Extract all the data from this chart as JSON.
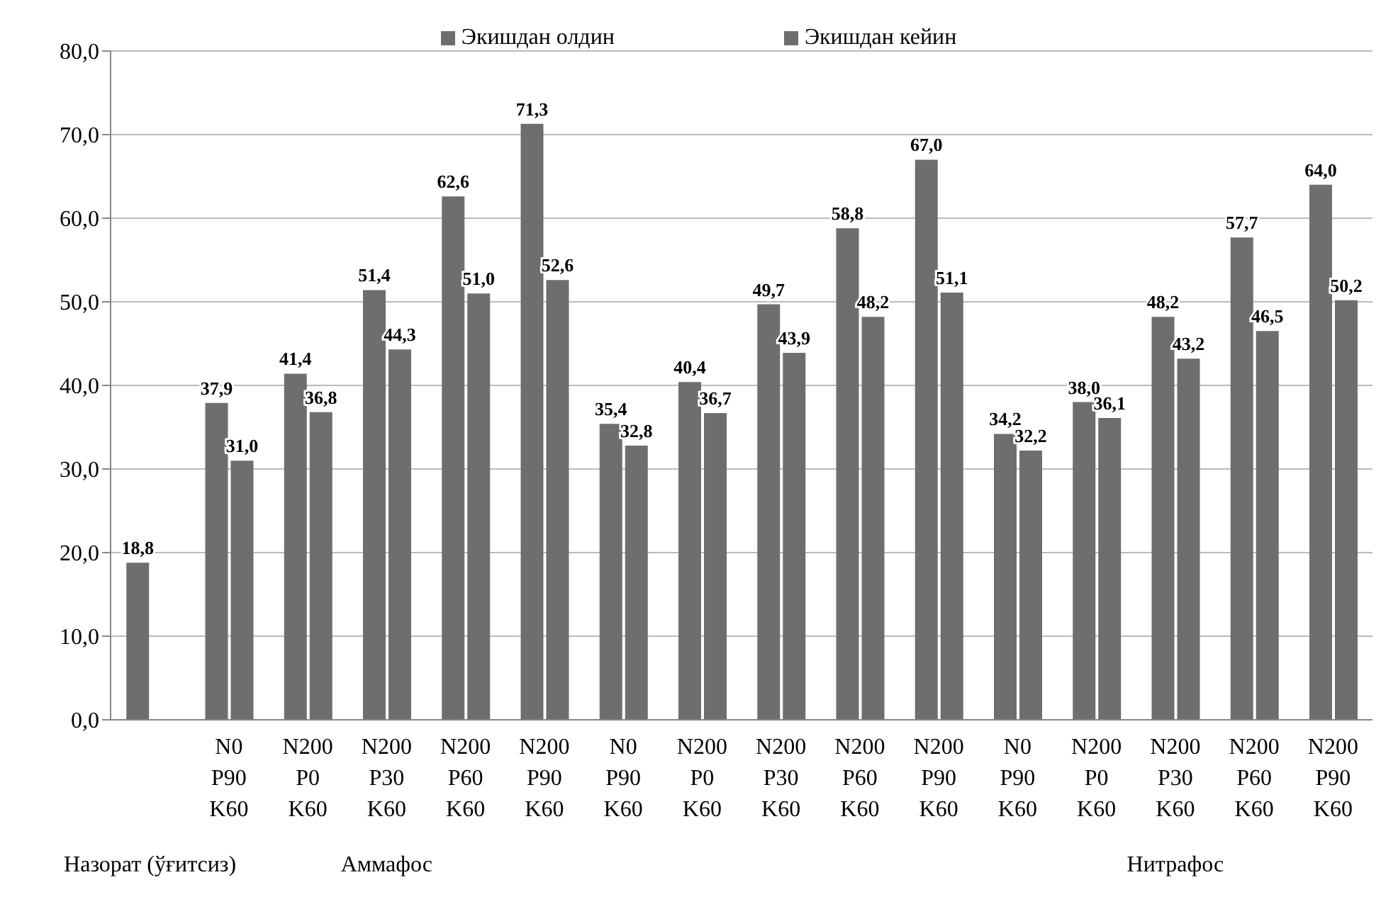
{
  "chart_data": {
    "type": "bar",
    "categories": [
      null,
      "N0\nP90\nK60",
      "N200\nP0\nK60",
      "N200\nP30\nK60",
      "N200\nP60\nK60",
      "N200\nP90\nK60",
      "N0\nP90\nK60",
      "N200\nP0\nK60",
      "N200\nP30\nK60",
      "N200\nP60\nK60",
      "N200\nP90\nK60",
      "N0\nP90\nK60",
      "N200\nP0\nK60",
      "N200\nP30\nK60",
      "N200\nP60\nK60",
      "N200\nP90\nK60"
    ],
    "series": [
      {
        "name": "Экишдан олдин",
        "color": "#6e6e6e",
        "values": [
          18.8,
          37.9,
          41.4,
          51.4,
          62.6,
          71.3,
          35.4,
          40.4,
          49.7,
          58.8,
          67.0,
          34.2,
          38.0,
          48.2,
          57.7,
          64.0
        ],
        "value_labels": [
          "18,8",
          "37,9",
          "41,4",
          "51,4",
          "62,6",
          "71,3",
          "35,4",
          "40,4",
          "49,7",
          "58,8",
          "67,0",
          "34,2",
          "38,0",
          "48,2",
          "57,7",
          "64,0"
        ]
      },
      {
        "name": "Экишдан кейин",
        "color": "#6e6e6e",
        "values": [
          null,
          31.0,
          36.8,
          44.3,
          51.0,
          52.6,
          32.8,
          36.7,
          43.9,
          48.2,
          51.1,
          32.2,
          36.1,
          43.2,
          46.5,
          50.2
        ],
        "value_labels": [
          null,
          "31,0",
          "36,8",
          "44,3",
          "51,0",
          "52,6",
          "32,8",
          "36,7",
          "43,9",
          "48,2",
          "51,1",
          "32,2",
          "36,1",
          "43,2",
          "46,5",
          "50,2"
        ]
      }
    ],
    "annotations": [
      "Назорат (ўғитсиз)",
      "Аммафос",
      "Нитрафос"
    ],
    "ylim": [
      0,
      80
    ],
    "yticks": [
      {
        "value": 0,
        "label": "0,0"
      },
      {
        "value": 10,
        "label": "10,0"
      },
      {
        "value": 20,
        "label": "20,0"
      },
      {
        "value": 30,
        "label": "30,0"
      },
      {
        "value": 40,
        "label": "40,0"
      },
      {
        "value": 50,
        "label": "50,0"
      },
      {
        "value": 60,
        "label": "60,0"
      },
      {
        "value": 70,
        "label": "70,0"
      },
      {
        "value": 80,
        "label": "80,0"
      }
    ],
    "grid": "y",
    "legend": "top"
  }
}
